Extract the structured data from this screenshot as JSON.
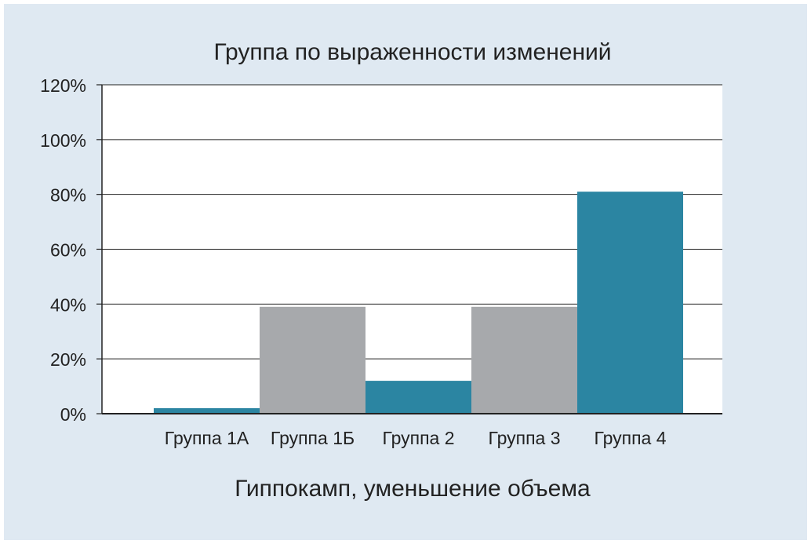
{
  "chart_data": {
    "type": "bar",
    "title": "Группа по выраженности изменений",
    "xlabel": "Гиппокамп, уменьшение объема",
    "ylabel": "",
    "categories": [
      "Группа 1А",
      "Группа 1Б",
      "Группа 2",
      "Группа 3",
      "Группа 4"
    ],
    "values": [
      2,
      39,
      12,
      39,
      81
    ],
    "bar_colors": [
      "#2b85a2",
      "#a7a9ac",
      "#2b85a2",
      "#a7a9ac",
      "#2b85a2"
    ],
    "ylim": [
      0,
      120
    ],
    "yticks": [
      0,
      20,
      40,
      60,
      80,
      100,
      120
    ],
    "ytick_labels": [
      "0%",
      "20%",
      "40%",
      "60%",
      "80%",
      "100%",
      "120%"
    ],
    "grid": true,
    "legend": "none"
  },
  "colors": {
    "background": "#dfe9f2",
    "plot_background": "#ffffff",
    "gridline": "#222222",
    "axis": "#222222"
  }
}
